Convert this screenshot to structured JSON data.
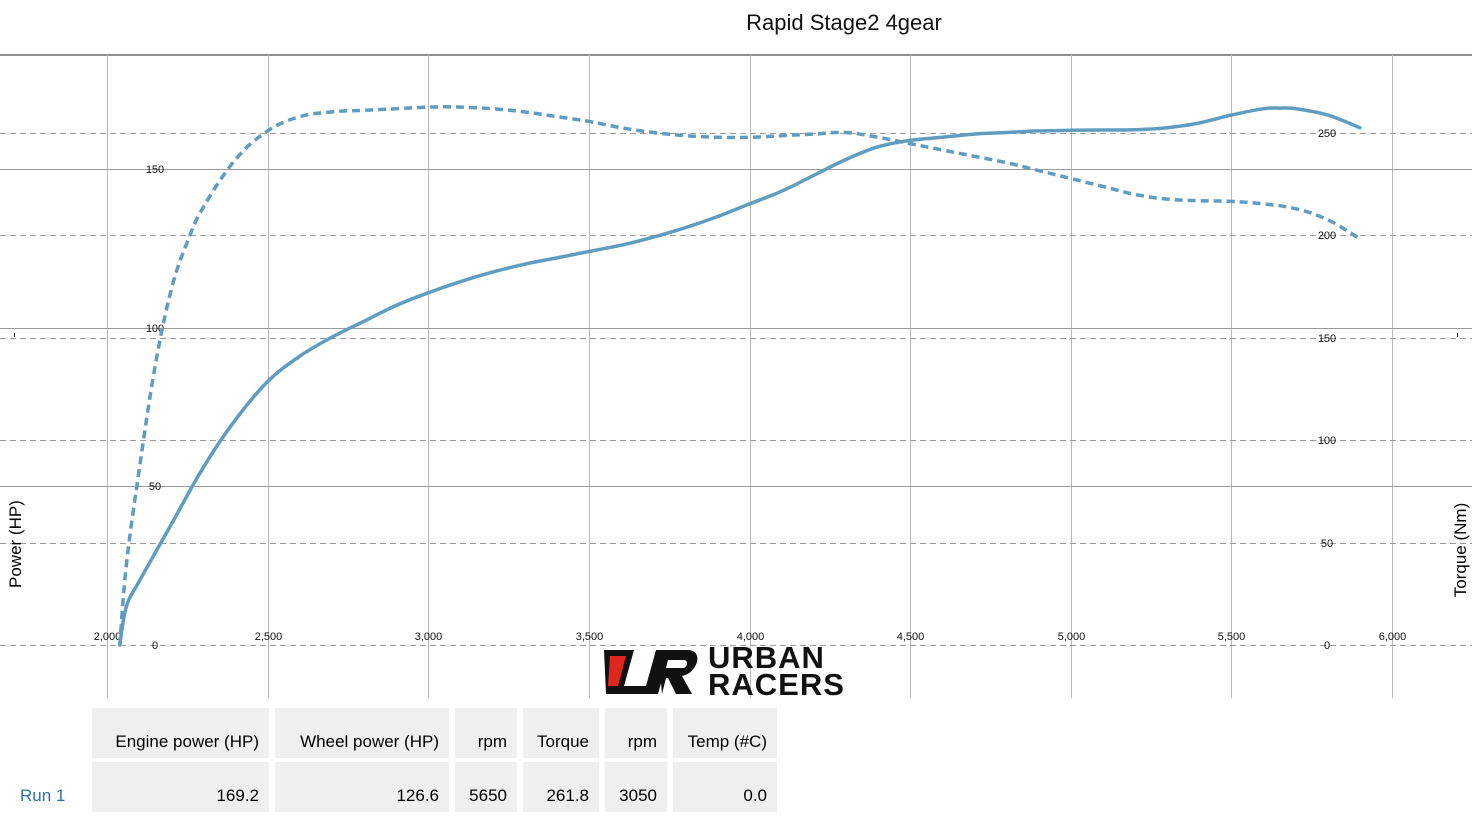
{
  "chart_data": {
    "type": "line",
    "title": "Rapid Stage2 4gear",
    "xlabel": "",
    "ylabel_left": "Power (HP)",
    "ylabel_right": "Torque (Nm)",
    "xlim": [
      1700,
      6250
    ],
    "ylim_left": [
      0,
      190
    ],
    "ylim_right": [
      0,
      283
    ],
    "x_ticks": [
      {
        "v": 2000,
        "label": "2,000"
      },
      {
        "v": 2500,
        "label": "2,500"
      },
      {
        "v": 3000,
        "label": "3,000"
      },
      {
        "v": 3500,
        "label": "3,500"
      },
      {
        "v": 4000,
        "label": "4,000"
      },
      {
        "v": 4500,
        "label": "4,500"
      },
      {
        "v": 5000,
        "label": "5,000"
      },
      {
        "v": 5500,
        "label": "5,500"
      },
      {
        "v": 6000,
        "label": "6,000"
      }
    ],
    "y_left_ticks": [
      {
        "v": 0,
        "label": "0"
      },
      {
        "v": 50,
        "label": "50"
      },
      {
        "v": 100,
        "label": "100"
      },
      {
        "v": 150,
        "label": "150"
      }
    ],
    "y_right_ticks": [
      {
        "v": 0,
        "label": "0"
      },
      {
        "v": 50,
        "label": "50"
      },
      {
        "v": 100,
        "label": "100"
      },
      {
        "v": 150,
        "label": "150"
      },
      {
        "v": 200,
        "label": "200"
      },
      {
        "v": 250,
        "label": "250"
      }
    ],
    "grid": true,
    "series": [
      {
        "axis": "left",
        "style": "solid",
        "color": "#5f9cc0",
        "x": [
          2040,
          2060,
          2100,
          2200,
          2300,
          2400,
          2500,
          2600,
          2700,
          2800,
          2900,
          3000,
          3100,
          3200,
          3300,
          3400,
          3500,
          3600,
          3700,
          3800,
          3900,
          4000,
          4100,
          4200,
          4300,
          4400,
          4500,
          4600,
          4700,
          4800,
          4900,
          5000,
          5100,
          5200,
          5300,
          5400,
          5500,
          5600,
          5650,
          5700,
          5800,
          5900
        ],
        "values": [
          0,
          12,
          20,
          38,
          56,
          71,
          83,
          91,
          97,
          102,
          107,
          111,
          114.5,
          117.5,
          120,
          122,
          124,
          126,
          128.5,
          131.5,
          135,
          139,
          143,
          148,
          153,
          157,
          159,
          160,
          161,
          161.5,
          162,
          162.2,
          162.3,
          162.4,
          163,
          164.5,
          167,
          169,
          169.2,
          169,
          167,
          163
        ]
      },
      {
        "axis": "left",
        "style": "dashed",
        "color": "#5f9cc0",
        "x": [
          2040,
          2060,
          2100,
          2150,
          2200,
          2250,
          2300,
          2400,
          2500,
          2600,
          2700,
          2800,
          2900,
          3000,
          3050,
          3100,
          3200,
          3300,
          3400,
          3500,
          3600,
          3700,
          3800,
          3900,
          4000,
          4100,
          4200,
          4300,
          4400,
          4500,
          4600,
          4700,
          4800,
          4900,
          5000,
          5100,
          5200,
          5300,
          5400,
          5500,
          5600,
          5700,
          5800,
          5900
        ],
        "values": [
          0,
          25,
          55,
          88,
          112,
          127,
          138,
          153,
          162,
          166.5,
          168,
          168.5,
          169,
          169.5,
          169.6,
          169.5,
          169,
          168,
          166.5,
          165,
          163,
          161.5,
          160.5,
          160,
          160,
          160.5,
          161,
          161.5,
          160,
          158,
          156,
          154,
          152,
          149.5,
          147,
          144.5,
          142,
          140.5,
          140,
          139.8,
          139,
          137.5,
          134,
          128
        ]
      }
    ]
  },
  "logo": {
    "brand_text_1": "URBAN",
    "brand_text_2": "RACERS",
    "accent_color": "#e0271f"
  },
  "results_table": {
    "headers": [
      "Engine power (HP)",
      "Wheel power (HP)",
      "rpm",
      "Torque",
      "rpm",
      "Temp (#C)"
    ],
    "rows": [
      {
        "label": "Run 1",
        "values": [
          "169.2",
          "126.6",
          "5650",
          "261.8",
          "3050",
          "0.0"
        ]
      }
    ]
  }
}
